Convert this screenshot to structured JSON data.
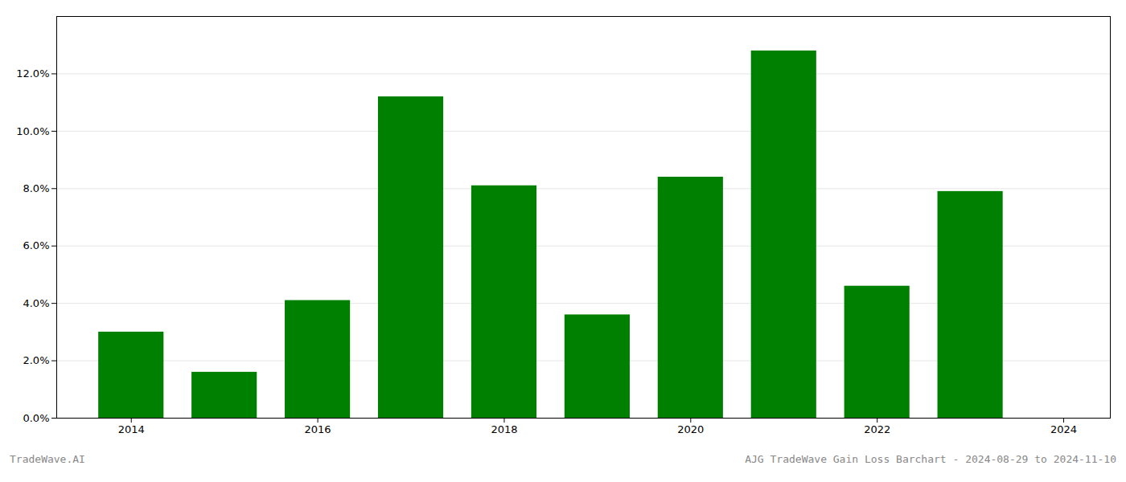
{
  "chart_data": {
    "type": "bar",
    "x": [
      2014,
      2015,
      2016,
      2017,
      2018,
      2019,
      2020,
      2021,
      2022,
      2023
    ],
    "values": [
      0.03,
      0.016,
      0.041,
      0.112,
      0.081,
      0.036,
      0.084,
      0.128,
      0.046,
      0.079
    ],
    "color": "#008000",
    "xlim": [
      2013.2,
      2024.5
    ],
    "xticks": [
      2014,
      2016,
      2018,
      2020,
      2022,
      2024
    ],
    "ylim": [
      0,
      0.14
    ],
    "yticks": [
      {
        "value": 0.0,
        "label": "0.0%"
      },
      {
        "value": 0.02,
        "label": "2.0%"
      },
      {
        "value": 0.04,
        "label": "4.0%"
      },
      {
        "value": 0.06,
        "label": "6.0%"
      },
      {
        "value": 0.08,
        "label": "8.0%"
      },
      {
        "value": 0.1,
        "label": "10.0%"
      },
      {
        "value": 0.12,
        "label": "12.0%"
      }
    ],
    "grid": true,
    "annotations": [
      "TradeWave.AI",
      "AJG TradeWave Gain Loss Barchart - 2024-08-29 to 2024-11-10"
    ]
  }
}
